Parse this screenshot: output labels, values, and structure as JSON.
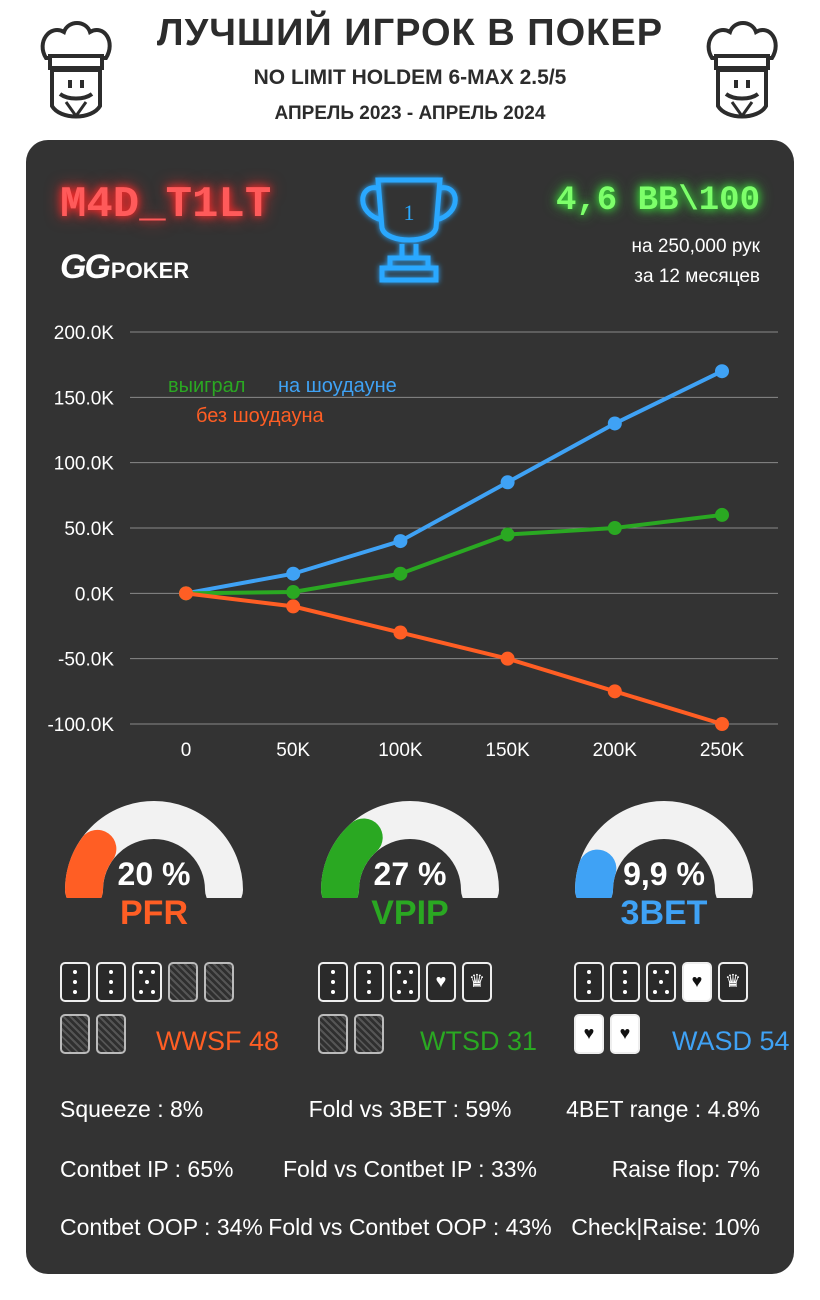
{
  "header": {
    "title": "ЛУЧШИЙ ИГРОК В ПОКЕР",
    "subtitle": "NO LIMIT HOLDEM 6-MAX 2.5/5",
    "dates": "АПРЕЛЬ 2023 - АПРЕЛЬ 2024"
  },
  "player": {
    "name": "M4D_T1LT",
    "logo_gg": "GG",
    "logo_poker": "POKER",
    "rank": "1",
    "winrate": "4,6 BB\\100",
    "hands": "на 250,000 рук",
    "period": "за  12 месяцев"
  },
  "colors": {
    "blue": "#3fa2f5",
    "green": "#2aa822",
    "orange": "#ff5e24",
    "card_bg": "#333333",
    "grid": "#9a9a9a"
  },
  "chart_data": {
    "type": "line",
    "x": [
      0,
      50000,
      100000,
      150000,
      200000,
      250000
    ],
    "x_tick_labels": [
      "0",
      "50K",
      "100K",
      "150K",
      "200K",
      "250K"
    ],
    "y_tick_labels": [
      "200.0K",
      "150.0K",
      "100.0K",
      "50.0K",
      "0.0K",
      "-50.0K",
      "-100.0K"
    ],
    "y_ticks": [
      200000,
      150000,
      100000,
      50000,
      0,
      -50000,
      -100000
    ],
    "ylim": [
      -100000,
      200000
    ],
    "xlim": [
      0,
      250000
    ],
    "grid": "horizontal",
    "legend_words": {
      "won": "выиграл",
      "showdown": "на шоудауне",
      "no_showdown": "без шоудауна"
    },
    "legend_placement": "top-left",
    "series": [
      {
        "key": "showdown",
        "color": "#3fa2f5",
        "values": [
          0,
          15000,
          40000,
          85000,
          130000,
          170000
        ]
      },
      {
        "key": "won",
        "color": "#2aa822",
        "values": [
          0,
          1000,
          15000,
          45000,
          50000,
          60000
        ]
      },
      {
        "key": "no_showdown",
        "color": "#ff5e24",
        "values": [
          0,
          -10000,
          -30000,
          -50000,
          -75000,
          -100000
        ]
      }
    ]
  },
  "gauges": [
    {
      "value": "20 %",
      "fraction": 0.2,
      "label": "PFR",
      "color": "#ff5e24"
    },
    {
      "value": "27 %",
      "fraction": 0.27,
      "label": "VPIP",
      "color": "#2aa822"
    },
    {
      "value": "9,9 %",
      "fraction": 0.099,
      "label": "3BET",
      "color": "#3fa2f5"
    }
  ],
  "metrics": [
    {
      "label": "WWSF 48",
      "color": "#ff5e24"
    },
    {
      "label": "WTSD 31",
      "color": "#2aa822"
    },
    {
      "label": "WASD 54",
      "color": "#3fa2f5"
    }
  ],
  "stats": {
    "col1": [
      "Squeeze : 8%",
      "Contbet IP : 65%",
      "Contbet OOP : 34%"
    ],
    "col2": [
      "Fold vs 3BET : 59%",
      "Fold vs Contbet IP : 33%",
      "Fold vs Contbet OOP : 43%"
    ],
    "col3": [
      "4BET range : 4.8%",
      "Raise flop: 7%",
      "Check|Raise: 10%"
    ]
  }
}
